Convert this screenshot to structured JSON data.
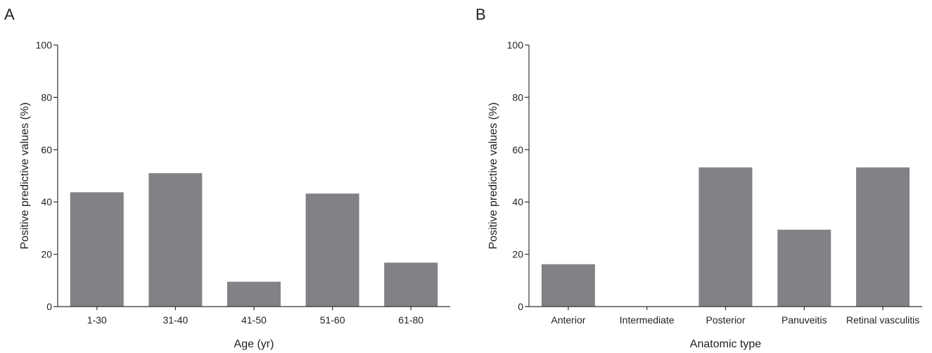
{
  "figure": {
    "panels": [
      "A",
      "B"
    ]
  },
  "colors": {
    "bar": "#818286",
    "axis": "#333333",
    "text": "#222222"
  },
  "chart_data": [
    {
      "type": "bar",
      "panel": "A",
      "title": "",
      "xlabel": "Age (yr)",
      "ylabel": "Positive predictive values (%)",
      "ylim": [
        0,
        100
      ],
      "yticks": [
        0,
        20,
        40,
        60,
        80,
        100
      ],
      "categories": [
        "1-30",
        "31-40",
        "41-50",
        "51-60",
        "61-80"
      ],
      "values": [
        43.7,
        51,
        9.5,
        43.2,
        16.8
      ],
      "grid": false
    },
    {
      "type": "bar",
      "panel": "B",
      "title": "",
      "xlabel": "Anatomic type",
      "ylabel": "Positive predictive values (%)",
      "ylim": [
        0,
        100
      ],
      "yticks": [
        0,
        20,
        40,
        60,
        80,
        100
      ],
      "categories": [
        "Anterior",
        "Intermediate",
        "Posterior",
        "Panuveitis",
        "Retinal vasculitis"
      ],
      "values": [
        16.2,
        0,
        53.2,
        29.4,
        53.2
      ],
      "grid": false
    }
  ]
}
